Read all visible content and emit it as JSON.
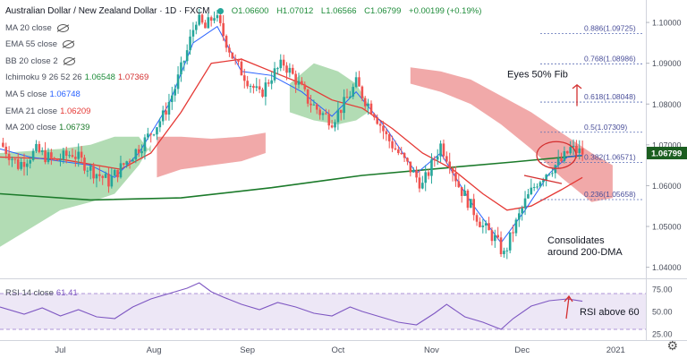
{
  "header": {
    "title": "Australian Dollar / New Zealand Dollar · 1D · FXCM",
    "o": "O1.06600",
    "h": "H1.07012",
    "l": "L1.06566",
    "c": "C1.06799",
    "chg": "+0.00199 (+0.19%)"
  },
  "indicators": {
    "ma20": "MA 20 close",
    "ema55": "EMA 55 close",
    "bb": "BB 20 close 2",
    "ichimoku": "Ichimoku 9 26 52 26",
    "ichimoku_v1": "1.06548",
    "ichimoku_v2": "1.07369",
    "ma5": "MA 5 close",
    "ma5_v": "1.06748",
    "ema21": "EMA 21 close",
    "ema21_v": "1.06209",
    "ma200": "MA 200 close",
    "ma200_v": "1.06739"
  },
  "rsi": {
    "label": "RSI 14 close",
    "value": "61.41"
  },
  "annotations": {
    "fib_text": "Eyes 50% Fib",
    "dma_text_1": "Consolidates",
    "dma_text_2": "around 200-DMA",
    "rsi_text": "RSI above 60"
  },
  "colors": {
    "up": "#26a69a",
    "down": "#ef5350",
    "ema21": "#e53935",
    "ma200": "#1b7a2a",
    "ma5": "#2962ff",
    "cloud_bull": "#a5d6a7",
    "cloud_bear": "#ef9a9a",
    "rsi": "#7e57c2",
    "rsi_band": "#ede7f6",
    "annotation": "#d32f2f",
    "last_price_bg": "#1b5e20"
  },
  "last_price": "1.06799",
  "chart_data": {
    "type": "candlestick",
    "symbol": "AUDNZD",
    "timeframe": "1D",
    "x_range": [
      "2020-06-10",
      "2020-12-31"
    ],
    "y_range": [
      1.0375,
      1.1055
    ],
    "x_ticks": [
      "Jul",
      "Aug",
      "Sep",
      "Oct",
      "Nov",
      "Dec",
      "2021"
    ],
    "y_ticks": [
      "1.10000",
      "1.09000",
      "1.08000",
      "1.07000",
      "1.06000",
      "1.05000",
      "1.04000"
    ],
    "close_path": [
      [
        0,
        1.0705
      ],
      [
        6,
        1.065
      ],
      [
        12,
        1.0685
      ],
      [
        18,
        1.066
      ],
      [
        24,
        1.068
      ],
      [
        30,
        1.064
      ],
      [
        36,
        1.061
      ],
      [
        42,
        1.066
      ],
      [
        48,
        1.071
      ],
      [
        54,
        1.077
      ],
      [
        58,
        1.084
      ],
      [
        62,
        1.093
      ],
      [
        65,
        1.101
      ],
      [
        68,
        1.0985
      ],
      [
        71,
        1.102
      ],
      [
        74,
        1.097
      ],
      [
        78,
        1.09
      ],
      [
        82,
        1.086
      ],
      [
        86,
        1.082
      ],
      [
        90,
        1.087
      ],
      [
        94,
        1.09
      ],
      [
        98,
        1.086
      ],
      [
        102,
        1.081
      ],
      [
        106,
        1.078
      ],
      [
        110,
        1.076
      ],
      [
        114,
        1.08
      ],
      [
        118,
        1.085
      ],
      [
        121,
        1.081
      ],
      [
        124,
        1.078
      ],
      [
        128,
        1.072
      ],
      [
        132,
        1.068
      ],
      [
        136,
        1.064
      ],
      [
        140,
        1.06
      ],
      [
        143,
        1.065
      ],
      [
        146,
        1.07
      ],
      [
        149,
        1.066
      ],
      [
        152,
        1.06
      ],
      [
        156,
        1.055
      ],
      [
        160,
        1.05
      ],
      [
        164,
        1.047
      ],
      [
        167,
        1.043
      ],
      [
        170,
        1.049
      ],
      [
        174,
        1.056
      ],
      [
        178,
        1.061
      ],
      [
        182,
        1.064
      ],
      [
        186,
        1.066
      ],
      [
        189,
        1.069
      ],
      [
        193,
        1.068
      ]
    ],
    "ema21": [
      [
        0,
        1.067
      ],
      [
        20,
        1.0665
      ],
      [
        40,
        1.064
      ],
      [
        50,
        1.068
      ],
      [
        60,
        1.078
      ],
      [
        70,
        1.09
      ],
      [
        80,
        1.091
      ],
      [
        90,
        1.088
      ],
      [
        100,
        1.085
      ],
      [
        110,
        1.081
      ],
      [
        120,
        1.079
      ],
      [
        130,
        1.074
      ],
      [
        140,
        1.068
      ],
      [
        150,
        1.064
      ],
      [
        160,
        1.058
      ],
      [
        168,
        1.054
      ],
      [
        176,
        1.055
      ],
      [
        186,
        1.059
      ],
      [
        193,
        1.062
      ]
    ],
    "ma5": [
      [
        0,
        1.069
      ],
      [
        10,
        1.067
      ],
      [
        20,
        1.066
      ],
      [
        30,
        1.065
      ],
      [
        38,
        1.062
      ],
      [
        46,
        1.068
      ],
      [
        56,
        1.08
      ],
      [
        64,
        1.095
      ],
      [
        72,
        1.099
      ],
      [
        80,
        1.088
      ],
      [
        90,
        1.087
      ],
      [
        100,
        1.083
      ],
      [
        110,
        1.077
      ],
      [
        118,
        1.083
      ],
      [
        128,
        1.074
      ],
      [
        138,
        1.063
      ],
      [
        146,
        1.068
      ],
      [
        156,
        1.056
      ],
      [
        166,
        1.046
      ],
      [
        174,
        1.054
      ],
      [
        182,
        1.063
      ],
      [
        188,
        1.067
      ],
      [
        193,
        1.0675
      ]
    ],
    "ma200": [
      [
        0,
        1.058
      ],
      [
        30,
        1.0565
      ],
      [
        60,
        1.057
      ],
      [
        90,
        1.0595
      ],
      [
        120,
        1.0625
      ],
      [
        150,
        1.0645
      ],
      [
        170,
        1.0658
      ],
      [
        193,
        1.0674
      ]
    ],
    "cloud_bull": [
      [
        0,
        1.068,
        1.045
      ],
      [
        20,
        1.069,
        1.054
      ],
      [
        30,
        1.07,
        1.056
      ],
      [
        38,
        1.072,
        1.058
      ],
      [
        46,
        1.072,
        1.065
      ],
      [
        50,
        1.068,
        1.07
      ]
    ],
    "cloud_bull_2": [
      [
        96,
        1.078,
        1.085
      ],
      [
        104,
        1.076,
        1.09
      ],
      [
        112,
        1.075,
        1.088
      ],
      [
        118,
        1.076,
        1.085
      ],
      [
        122,
        1.078,
        1.08
      ]
    ],
    "cloud_bear": [
      [
        52,
        1.072,
        1.062
      ],
      [
        60,
        1.072,
        1.064
      ],
      [
        70,
        1.0715,
        1.065
      ],
      [
        80,
        1.072,
        1.066
      ],
      [
        88,
        1.073,
        1.068
      ]
    ],
    "cloud_bear_2": [
      [
        136,
        1.089,
        1.085
      ],
      [
        146,
        1.088,
        1.083
      ],
      [
        156,
        1.086,
        1.08
      ],
      [
        166,
        1.082,
        1.075
      ],
      [
        176,
        1.078,
        1.069
      ],
      [
        186,
        1.073,
        1.062
      ],
      [
        196,
        1.068,
        1.056
      ],
      [
        203,
        1.065,
        1.057
      ]
    ],
    "fib_levels": [
      {
        "label": "0.886(1.09725)",
        "value": 1.09725
      },
      {
        "label": "0.768(1.08986)",
        "value": 1.08986
      },
      {
        "label": "0.618(1.08048)",
        "value": 1.08048
      },
      {
        "label": "0.5(1.07309)",
        "value": 1.07309
      },
      {
        "label": "0.382(1.06571)",
        "value": 1.06571
      },
      {
        "label": "0.236(1.05658)",
        "value": 1.05658
      }
    ],
    "rsi": {
      "range": [
        20,
        85
      ],
      "ticks": [
        "75.00",
        "50.00",
        "25.00"
      ],
      "band": [
        30,
        70
      ],
      "path": [
        [
          0,
          55
        ],
        [
          8,
          47
        ],
        [
          14,
          54
        ],
        [
          20,
          45
        ],
        [
          26,
          52
        ],
        [
          32,
          44
        ],
        [
          38,
          42
        ],
        [
          44,
          55
        ],
        [
          50,
          64
        ],
        [
          56,
          70
        ],
        [
          62,
          76
        ],
        [
          66,
          82
        ],
        [
          70,
          72
        ],
        [
          74,
          66
        ],
        [
          80,
          58
        ],
        [
          86,
          52
        ],
        [
          92,
          60
        ],
        [
          98,
          55
        ],
        [
          104,
          48
        ],
        [
          110,
          45
        ],
        [
          116,
          55
        ],
        [
          120,
          50
        ],
        [
          126,
          44
        ],
        [
          132,
          38
        ],
        [
          138,
          35
        ],
        [
          144,
          48
        ],
        [
          148,
          58
        ],
        [
          154,
          44
        ],
        [
          160,
          38
        ],
        [
          166,
          30
        ],
        [
          170,
          42
        ],
        [
          176,
          56
        ],
        [
          182,
          62
        ],
        [
          188,
          64
        ],
        [
          193,
          61.4
        ]
      ]
    }
  }
}
